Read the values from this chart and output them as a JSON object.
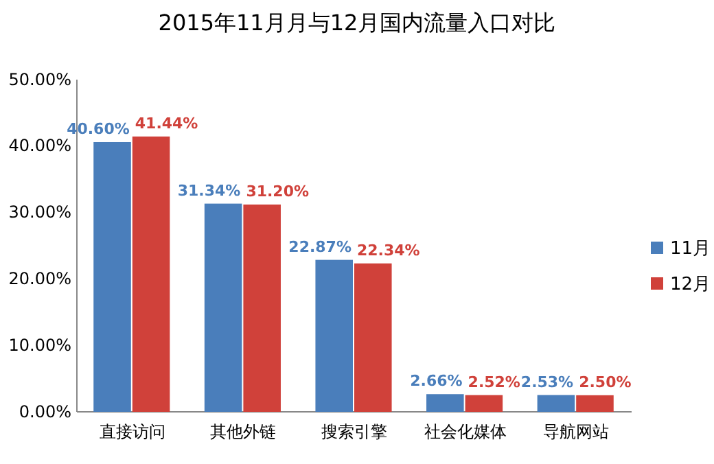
{
  "chart_data": {
    "type": "bar",
    "title": "2015年11月月与12月国内流量入口对比",
    "categories": [
      "直接访问",
      "其他外链",
      "搜索引擎",
      "社会化媒体",
      "导航网站"
    ],
    "series": [
      {
        "name": "11月",
        "color": "#4a7ebb",
        "values": [
          40.6,
          31.34,
          22.87,
          2.66,
          2.53
        ],
        "value_labels": [
          "40.60%",
          "31.34%",
          "22.87%",
          "2.66%",
          "2.53%"
        ]
      },
      {
        "name": "12月",
        "color": "#d0413a",
        "values": [
          41.44,
          31.2,
          22.34,
          2.52,
          2.5
        ],
        "value_labels": [
          "41.44%",
          "31.20%",
          "22.34%",
          "2.52%",
          "2.50%"
        ]
      }
    ],
    "ylim": [
      0,
      50
    ],
    "yticks": [
      {
        "value": 0,
        "label": "0.00%"
      },
      {
        "value": 10,
        "label": "10.00%"
      },
      {
        "value": 20,
        "label": "20.00%"
      },
      {
        "value": 30,
        "label": "30.00%"
      },
      {
        "value": 40,
        "label": "40.00%"
      },
      {
        "value": 50,
        "label": "50.00%"
      }
    ],
    "legend": "right"
  }
}
